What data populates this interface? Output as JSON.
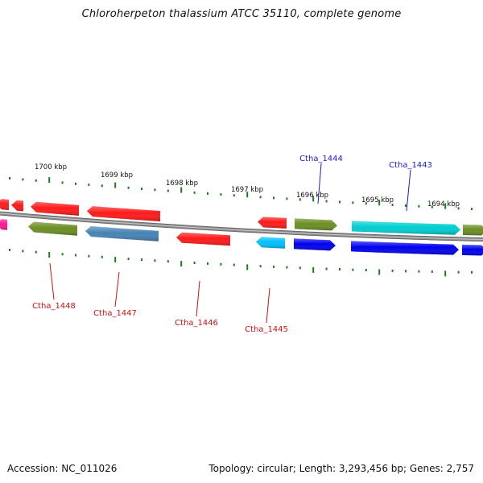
{
  "title": "Chloroherpeton thalassium ATCC 35110, complete genome",
  "footer": {
    "accession": "Accession: NC_011026",
    "stats": "Topology: circular; Length: 3,293,456 bp; Genes: 2,757"
  },
  "colors": {
    "backbone": "#8a8a8a",
    "tick": "#1f7a1f",
    "label_forward": "#1a1acc",
    "label_reverse": "#cc1010"
  },
  "scale_labels": [
    "1700 kbp",
    "1699 kbp",
    "1698 kbp",
    "1697 kbp",
    "1696 kbp",
    "1695 kbp",
    "1694 kbp"
  ],
  "genes": [
    {
      "label": "",
      "strand": "reverse",
      "track": "inner",
      "color": "#ff1493"
    },
    {
      "label": "",
      "strand": "reverse",
      "track": "outer",
      "color": "#ff1a1a"
    },
    {
      "label": "",
      "strand": "reverse",
      "track": "outer",
      "color": "#ff1a1a"
    },
    {
      "label": "",
      "strand": "reverse",
      "track": "outer",
      "color": "#ff1a1a"
    },
    {
      "label": "Ctha_1448",
      "strand": "reverse",
      "track": "inner",
      "color": "#6b8e23"
    },
    {
      "label": "",
      "strand": "reverse",
      "track": "outer",
      "color": "#ff1a1a"
    },
    {
      "label": "Ctha_1447",
      "strand": "reverse",
      "track": "inner",
      "color": "#4682b4"
    },
    {
      "label": "Ctha_1446",
      "strand": "reverse",
      "track": "inner",
      "color": "#ff1a1a"
    },
    {
      "label": "",
      "strand": "reverse",
      "track": "outer",
      "color": "#ff1a1a"
    },
    {
      "label": "Ctha_1445",
      "strand": "reverse",
      "track": "inner",
      "color": "#00bfff"
    },
    {
      "label": "Ctha_1444",
      "strand": "forward",
      "track": "outer",
      "color": "#6b8e23"
    },
    {
      "label": "",
      "strand": "forward",
      "track": "inner",
      "color": "#0000ee"
    },
    {
      "label": "Ctha_1443",
      "strand": "forward",
      "track": "outer",
      "color": "#00ced1"
    },
    {
      "label": "",
      "strand": "forward",
      "track": "inner",
      "color": "#0000ee"
    },
    {
      "label": "",
      "strand": "forward",
      "track": "outer",
      "color": "#6b8e23"
    },
    {
      "label": "",
      "strand": "forward",
      "track": "inner",
      "color": "#0000ee"
    }
  ]
}
